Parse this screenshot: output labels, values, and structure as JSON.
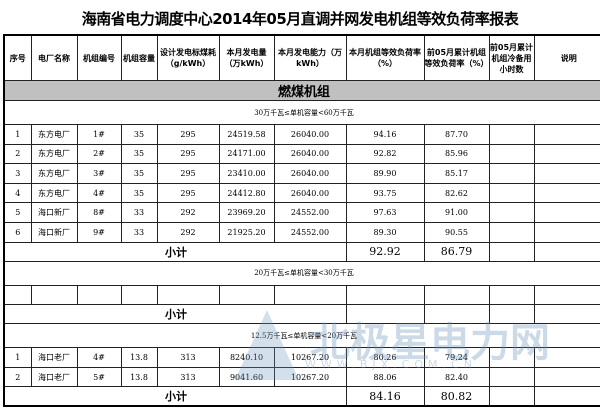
{
  "title": "海南省电力调度中心2014年05月直调并网发电机组等效负荷率报表",
  "headers": [
    "序号",
    "电厂名称",
    "机组编号",
    "机组容量",
    "设计发电标煤耗（g/kWh）",
    "本月发电量（万kWh）",
    "本月发电能力（万kWh）",
    "本月机组等效负荷率（%）",
    "前05月累计机组等效负荷率（%）",
    "前05月累计机组冷备用小时数",
    "说明"
  ],
  "category": "燃煤机组",
  "sections": [
    {
      "label": "30万千瓦≤单机容量<60万千瓦",
      "rows": [
        [
          "1",
          "东方电厂",
          "1#",
          "35",
          "295",
          "24519.58",
          "26040.00",
          "94.16",
          "87.70",
          "",
          ""
        ],
        [
          "2",
          "东方电厂",
          "2#",
          "35",
          "295",
          "24171.00",
          "26040.00",
          "92.82",
          "85.96",
          "",
          ""
        ],
        [
          "3",
          "东方电厂",
          "3#",
          "35",
          "295",
          "23410.00",
          "26040.00",
          "89.90",
          "85.17",
          "",
          ""
        ],
        [
          "4",
          "东方电厂",
          "4#",
          "35",
          "295",
          "24412.80",
          "26040.00",
          "93.75",
          "82.62",
          "",
          ""
        ],
        [
          "5",
          "海口新厂",
          "8#",
          "33",
          "292",
          "23969.20",
          "24552.00",
          "97.63",
          "91.00",
          "",
          ""
        ],
        [
          "6",
          "海口新厂",
          "9#",
          "33",
          "292",
          "21925.20",
          "24552.00",
          "89.30",
          "90.55",
          "",
          ""
        ]
      ],
      "subtotal": {
        "label": "小计",
        "rate": "92.92",
        "cum": "86.79"
      }
    },
    {
      "label": "20万千瓦≤单机容量<30万千瓦",
      "rows": [
        [
          "",
          "",
          "",
          "",
          "",
          "",
          "",
          "",
          "",
          "",
          ""
        ]
      ],
      "subtotal": {
        "label": "小计",
        "rate": "",
        "cum": ""
      }
    },
    {
      "label": "12.5万千瓦≤单机容量<20万千瓦",
      "rows": [
        [
          "1",
          "海口老厂",
          "4#",
          "13.8",
          "313",
          "8240.10",
          "10267.20",
          "80.26",
          "79.24",
          "",
          ""
        ],
        [
          "2",
          "海口老厂",
          "5#",
          "13.8",
          "313",
          "9041.60",
          "10267.20",
          "88.06",
          "82.40",
          "",
          ""
        ]
      ],
      "subtotal": {
        "label": "小计",
        "rate": "84.16",
        "cum": "80.82"
      }
    }
  ],
  "watermark": {
    "name": "北极星电力网",
    "url": "WWW.BJX.COM.CN"
  }
}
